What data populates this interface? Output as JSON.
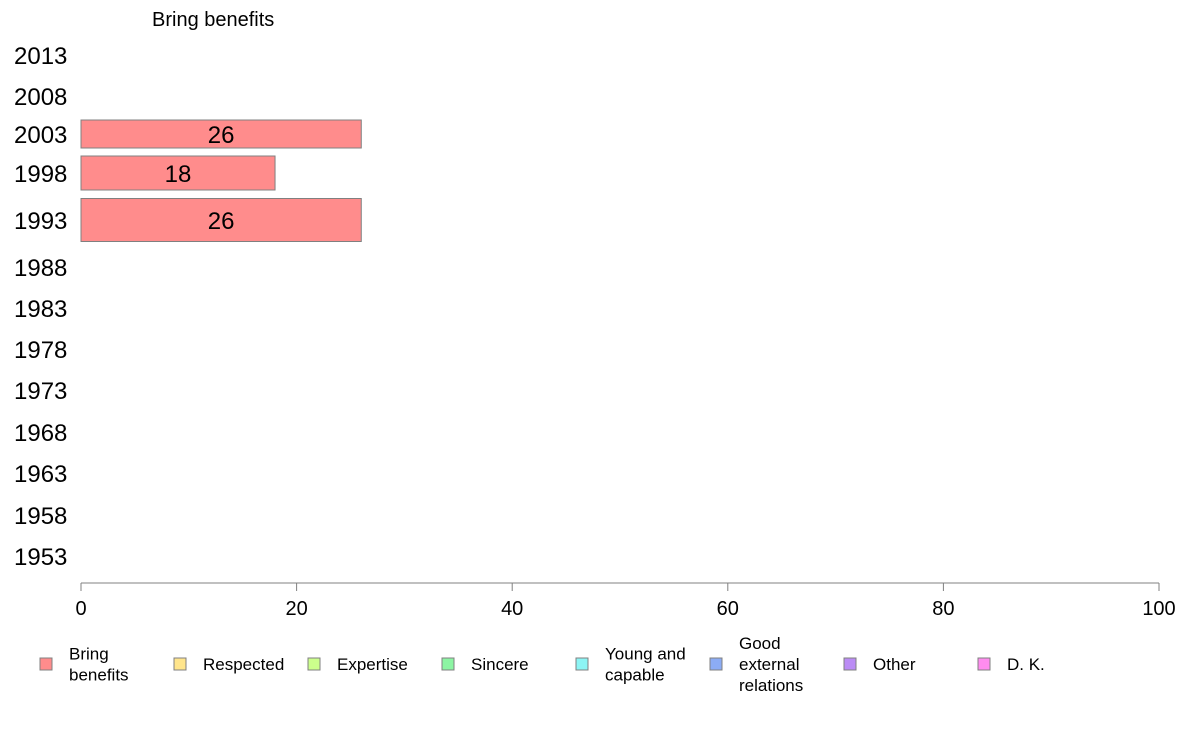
{
  "chart_data": {
    "type": "bar",
    "orientation": "horizontal",
    "title": "Bring benefits",
    "categories": [
      "2013",
      "2008",
      "2003",
      "1998",
      "1993",
      "1988",
      "1983",
      "1978",
      "1973",
      "1968",
      "1963",
      "1958",
      "1953"
    ],
    "series": [
      {
        "name": "Bring benefits",
        "color": "#ff8c8c",
        "values": [
          null,
          null,
          26,
          18,
          26,
          null,
          null,
          null,
          null,
          null,
          null,
          null,
          null
        ]
      }
    ],
    "xlim": [
      0,
      100
    ],
    "xticks": [
      "0",
      "20",
      "40",
      "60",
      "80",
      "100"
    ],
    "grid": false,
    "legend": {
      "position": "bottom",
      "entries": [
        {
          "label": [
            "Bring",
            "benefits"
          ],
          "color": "#ff8c8c"
        },
        {
          "label": [
            "Respected"
          ],
          "color": "#ffe58c"
        },
        {
          "label": [
            "Expertise"
          ],
          "color": "#ccff8c"
        },
        {
          "label": [
            "Sincere"
          ],
          "color": "#8cf5a3"
        },
        {
          "label": [
            "Young and",
            "capable"
          ],
          "color": "#8cf5f5"
        },
        {
          "label": [
            "Good",
            "external",
            "relations"
          ],
          "color": "#8cacf5"
        },
        {
          "label": [
            "Other"
          ],
          "color": "#bb8cf5"
        },
        {
          "label": [
            "D. K."
          ],
          "color": "#ff8cef"
        }
      ]
    }
  }
}
